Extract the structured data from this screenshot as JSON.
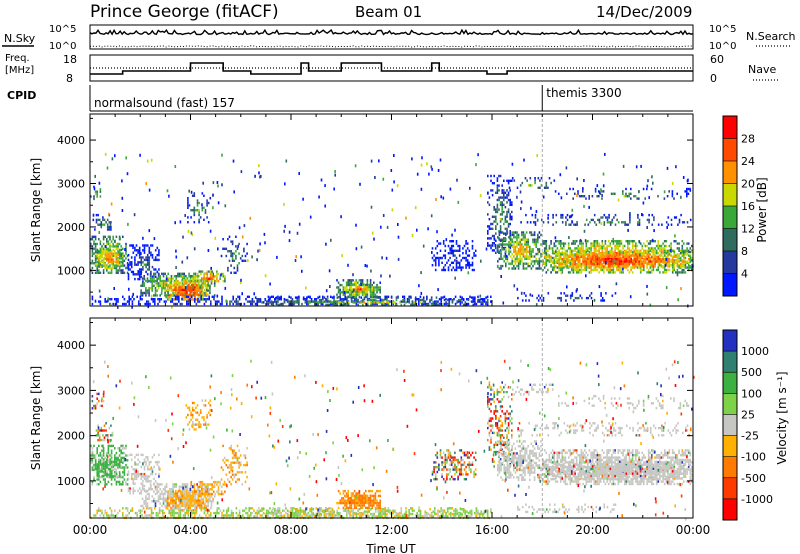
{
  "header": {
    "site": "Prince George (fitACF)",
    "beam": "Beam 01",
    "date": "14/Dec/2009"
  },
  "top_panels": {
    "nsky_label": "N.Sky",
    "nsky_ticks": [
      "10^5",
      "10^0"
    ],
    "nsearch_label": "N.Search",
    "nsearch_ticks": [
      "10^5",
      "10^0"
    ],
    "freq_label_1": "Freq.",
    "freq_label_2": "[MHz]",
    "freq_ticks": [
      "18",
      "8"
    ],
    "nave_label": "Nave",
    "nave_ticks": [
      "60",
      "0"
    ],
    "cpid_label": "CPID",
    "cpid_segments": [
      {
        "label": "normalsound (fast) 157",
        "start": 0,
        "end": 18.0
      },
      {
        "label": "themis 3300",
        "start": 18.0,
        "end": 24
      }
    ]
  },
  "x_axis": {
    "label": "Time UT",
    "ticks": [
      "00:00",
      "04:00",
      "08:00",
      "12:00",
      "16:00",
      "20:00",
      "00:00"
    ]
  },
  "chart_data": [
    {
      "type": "heatmap",
      "title": "",
      "ylabel": "Slant Range [km]",
      "xlabel": "",
      "xlim": [
        0,
        24
      ],
      "ylim": [
        180,
        4600
      ],
      "yticks": [
        "1000",
        "2000",
        "3000",
        "4000"
      ],
      "colorbar": {
        "label": "Power [dB]",
        "ticks": [
          "28",
          "24",
          "20",
          "16",
          "12",
          "8",
          "4"
        ],
        "colors": [
          "#ff0000",
          "#ff4a00",
          "#ff9000",
          "#c8d800",
          "#3aa838",
          "#2e6c5e",
          "#253a9e",
          "#0018ff"
        ]
      }
    },
    {
      "type": "heatmap",
      "title": "",
      "ylabel": "Slant Range [km]",
      "xlabel": "Time UT",
      "xlim": [
        0,
        24
      ],
      "ylim": [
        180,
        4600
      ],
      "yticks": [
        "1000",
        "2000",
        "3000",
        "4000"
      ],
      "colorbar": {
        "label": "Velocity [m s⁻¹]",
        "ticks": [
          "1000",
          "500",
          "100",
          "25",
          "-25",
          "-100",
          "-500",
          "-1000"
        ],
        "colors": [
          "#2430c0",
          "#2f8070",
          "#3cb040",
          "#7ed24a",
          "#c6c6c2",
          "#ffb000",
          "#ff7a00",
          "#ff3a00",
          "#ff0000"
        ]
      }
    }
  ]
}
